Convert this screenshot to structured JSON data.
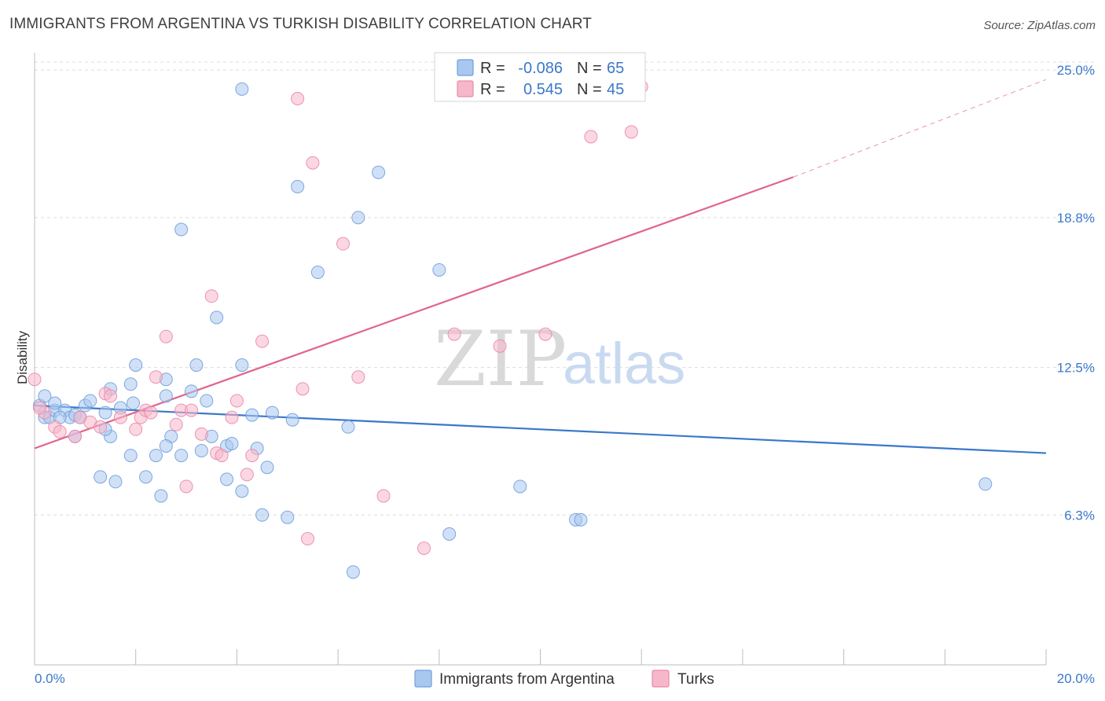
{
  "title": "IMMIGRANTS FROM ARGENTINA VS TURKISH DISABILITY CORRELATION CHART",
  "source": "Source: ZipAtlas.com",
  "watermark": {
    "zip": "ZIP",
    "atlas": "atlas"
  },
  "legend_top": {
    "rows": [
      {
        "r_label": "R =",
        "r_value": "-0.086",
        "n_label": "N =",
        "n_value": "65",
        "color": "#a9c8f0"
      },
      {
        "r_label": "R =",
        "r_value": "0.545",
        "n_label": "N =",
        "n_value": "45",
        "color": "#f7b7cb"
      }
    ]
  },
  "legend_bottom": [
    {
      "label": "Immigrants from Argentina",
      "color": "#a9c8f0"
    },
    {
      "label": "Turks",
      "color": "#f7b7cb"
    }
  ],
  "chart_data": {
    "type": "scatter",
    "title": "IMMIGRANTS FROM ARGENTINA VS TURKISH DISABILITY CORRELATION CHART",
    "xlabel": "",
    "ylabel": "Disability",
    "xlim": [
      0,
      20
    ],
    "ylim": [
      0,
      25.6
    ],
    "x_tick_labels": [
      "0.0%",
      "20.0%"
    ],
    "y_ticks": [
      6.3,
      12.5,
      18.8,
      25.0
    ],
    "y_tick_labels": [
      "6.3%",
      "12.5%",
      "18.8%",
      "25.0%"
    ],
    "grid": true,
    "legend_position": "top-center",
    "series": [
      {
        "name": "Immigrants from Argentina",
        "color": "#a9c8f0",
        "stroke": "#6f9fdc",
        "trend": {
          "x": [
            0,
            20
          ],
          "y": [
            10.9,
            8.9
          ],
          "color": "#3b78c9"
        },
        "points": [
          [
            0.1,
            10.9
          ],
          [
            0.2,
            10.4
          ],
          [
            0.3,
            10.4
          ],
          [
            0.4,
            10.7
          ],
          [
            0.6,
            10.7
          ],
          [
            0.4,
            11.0
          ],
          [
            0.7,
            10.4
          ],
          [
            0.8,
            10.5
          ],
          [
            0.9,
            10.4
          ],
          [
            0.8,
            9.6
          ],
          [
            1.0,
            10.9
          ],
          [
            1.1,
            11.1
          ],
          [
            1.5,
            11.6
          ],
          [
            1.4,
            10.6
          ],
          [
            1.5,
            9.6
          ],
          [
            1.4,
            9.9
          ],
          [
            1.9,
            11.8
          ],
          [
            2.0,
            12.6
          ],
          [
            1.95,
            11.0
          ],
          [
            2.6,
            11.3
          ],
          [
            2.6,
            12.0
          ],
          [
            3.1,
            11.5
          ],
          [
            3.2,
            12.6
          ],
          [
            3.4,
            11.1
          ],
          [
            2.7,
            9.6
          ],
          [
            2.6,
            9.2
          ],
          [
            1.9,
            8.8
          ],
          [
            2.4,
            8.8
          ],
          [
            2.9,
            8.8
          ],
          [
            3.3,
            9.0
          ],
          [
            3.5,
            9.6
          ],
          [
            3.8,
            9.2
          ],
          [
            3.9,
            9.3
          ],
          [
            4.4,
            9.1
          ],
          [
            1.3,
            7.9
          ],
          [
            1.6,
            7.7
          ],
          [
            2.2,
            7.9
          ],
          [
            2.5,
            7.1
          ],
          [
            3.8,
            7.8
          ],
          [
            4.1,
            7.3
          ],
          [
            4.6,
            8.3
          ],
          [
            4.5,
            6.3
          ],
          [
            5.0,
            6.2
          ],
          [
            5.1,
            10.3
          ],
          [
            4.7,
            10.6
          ],
          [
            4.3,
            10.5
          ],
          [
            4.1,
            12.6
          ],
          [
            3.6,
            14.6
          ],
          [
            2.9,
            18.3
          ],
          [
            5.2,
            20.1
          ],
          [
            5.6,
            16.5
          ],
          [
            6.4,
            18.8
          ],
          [
            6.8,
            20.7
          ],
          [
            8.0,
            16.6
          ],
          [
            6.2,
            10.0
          ],
          [
            6.3,
            3.9
          ],
          [
            8.2,
            5.5
          ],
          [
            9.6,
            7.5
          ],
          [
            10.7,
            6.1
          ],
          [
            10.8,
            6.1
          ],
          [
            18.8,
            7.6
          ],
          [
            4.1,
            24.2
          ],
          [
            0.2,
            11.3
          ],
          [
            0.5,
            10.4
          ],
          [
            1.7,
            10.8
          ]
        ]
      },
      {
        "name": "Turks",
        "color": "#f7b7cb",
        "stroke": "#e98aa8",
        "trend": {
          "x": [
            0,
            15
          ],
          "y": [
            9.1,
            20.5
          ],
          "color": "#e0648c",
          "dash_extension": {
            "x": [
              15,
              20
            ],
            "y": [
              20.5,
              24.6
            ]
          }
        },
        "points": [
          [
            0.0,
            12.0
          ],
          [
            0.2,
            10.6
          ],
          [
            0.4,
            10.0
          ],
          [
            0.5,
            9.8
          ],
          [
            0.8,
            9.6
          ],
          [
            0.9,
            10.4
          ],
          [
            1.1,
            10.2
          ],
          [
            1.3,
            10.0
          ],
          [
            1.4,
            11.4
          ],
          [
            1.5,
            11.3
          ],
          [
            1.7,
            10.4
          ],
          [
            2.0,
            9.9
          ],
          [
            2.1,
            10.4
          ],
          [
            2.2,
            10.7
          ],
          [
            2.3,
            10.6
          ],
          [
            2.4,
            12.1
          ],
          [
            2.6,
            13.8
          ],
          [
            2.8,
            10.1
          ],
          [
            2.9,
            10.7
          ],
          [
            3.1,
            10.7
          ],
          [
            3.3,
            9.7
          ],
          [
            3.5,
            15.5
          ],
          [
            3.6,
            8.9
          ],
          [
            3.7,
            8.8
          ],
          [
            3.9,
            10.4
          ],
          [
            4.0,
            11.1
          ],
          [
            4.2,
            8.0
          ],
          [
            4.3,
            8.8
          ],
          [
            4.5,
            13.6
          ],
          [
            5.2,
            23.8
          ],
          [
            5.3,
            11.6
          ],
          [
            5.5,
            21.1
          ],
          [
            6.1,
            17.7
          ],
          [
            6.4,
            12.1
          ],
          [
            6.9,
            7.1
          ],
          [
            7.7,
            4.9
          ],
          [
            8.3,
            13.9
          ],
          [
            9.2,
            13.4
          ],
          [
            10.1,
            13.9
          ],
          [
            11.0,
            22.2
          ],
          [
            11.8,
            22.4
          ],
          [
            12.0,
            24.3
          ],
          [
            3.0,
            7.5
          ],
          [
            5.4,
            5.3
          ],
          [
            0.1,
            10.8
          ]
        ]
      }
    ]
  }
}
